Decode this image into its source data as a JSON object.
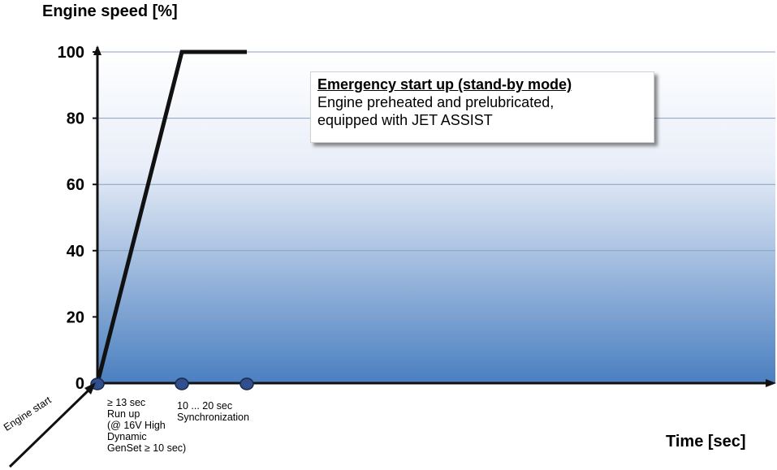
{
  "chart_data": {
    "type": "line",
    "ylabel": "Engine speed [%]",
    "xlabel": "Time [sec]",
    "ylim": [
      0,
      100
    ],
    "yticks": [
      "0",
      "20",
      "40",
      "60",
      "80",
      "100"
    ],
    "grid": true,
    "series": [
      {
        "points": [
          [
            0,
            0
          ],
          [
            13,
            100
          ],
          [
            23,
            100
          ]
        ]
      }
    ],
    "markers": [
      0,
      13,
      23
    ],
    "annotations": {
      "callout_title": "Emergency start up (stand-by mode)",
      "callout_body": "Engine preheated and prelubricated,\nequipped with JET ASSIST",
      "run_up": "≥ 13 sec\nRun up\n(@ 16V High\nDynamic\nGenSet ≥ 10 sec)",
      "synchronization": "10 ... 20 sec\nSynchronization",
      "engine_start": "Engine start"
    }
  },
  "colors": {
    "gradient_top": "#ffffff",
    "gradient_bottom": "#4a7fc0",
    "line": "#111111",
    "marker": "#2f4f8f",
    "grid": "#8aa0bf"
  }
}
